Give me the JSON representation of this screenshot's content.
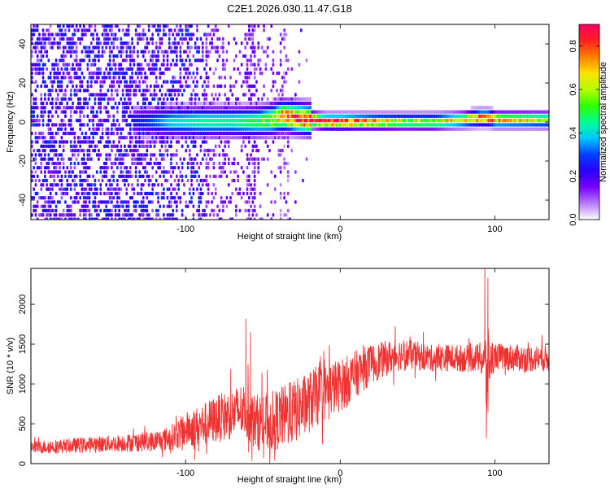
{
  "figure": {
    "title": "C2E1.2026.030.11.47.G18"
  },
  "chart_data": [
    {
      "type": "heatmap",
      "title": "C2E1.2026.030.11.47.G18",
      "xlabel": "Height of straight line (km)",
      "ylabel": "Frequency (Hz)",
      "xlim": [
        -200,
        135
      ],
      "ylim": [
        -50,
        50
      ],
      "x_ticks": [
        -100,
        0,
        100
      ],
      "y_ticks": [
        -40,
        -20,
        0,
        20,
        40
      ],
      "x_tick_labels": [
        "-100",
        "0",
        "100"
      ],
      "y_tick_labels": [
        "-40",
        "-20",
        "0",
        "20",
        "40"
      ],
      "colorbar": {
        "label": "Normalized spectral amplitude",
        "range": [
          0,
          0.9
        ],
        "ticks": [
          0,
          0.2,
          0.4,
          0.6,
          0.8
        ],
        "tick_labels": [
          "0.0",
          "0.2",
          "0.4",
          "0.6",
          "0.8"
        ],
        "colormap": [
          "#ffffff",
          "#b57bff",
          "#7a00ff",
          "#2a00ff",
          "#0040ff",
          "#00c8ff",
          "#00ff90",
          "#30ff00",
          "#b4ff00",
          "#ffe000",
          "#ff8000",
          "#ff2020",
          "#ff0060"
        ]
      },
      "ridge": {
        "description_values": "dominant Doppler near 0 Hz",
        "x": [
          -130,
          -110,
          -90,
          -70,
          -55,
          -45,
          -38,
          -30,
          -20,
          -10,
          0,
          20,
          40,
          60,
          80,
          90,
          95,
          100,
          120,
          135
        ],
        "freq": [
          0,
          0,
          0,
          0,
          0,
          1,
          3,
          2,
          1,
          0,
          0,
          0,
          0,
          0,
          1,
          2,
          2,
          1,
          1,
          1
        ],
        "amplitude": [
          0.25,
          0.4,
          0.45,
          0.45,
          0.5,
          0.6,
          0.75,
          0.8,
          0.85,
          0.85,
          0.85,
          0.7,
          0.6,
          0.6,
          0.65,
          0.85,
          0.85,
          0.7,
          0.65,
          0.6
        ]
      },
      "noise_extent_x": [
        -200,
        -20
      ]
    },
    {
      "type": "line",
      "xlabel": "Height of straight line (km)",
      "ylabel": "SNR (10 * v/v)",
      "xlim": [
        -200,
        135
      ],
      "ylim": [
        0,
        2450
      ],
      "x_ticks": [
        -100,
        0,
        100
      ],
      "y_ticks": [
        0,
        500,
        1000,
        1500,
        2000
      ],
      "x_tick_labels": [
        "-100",
        "0",
        "100"
      ],
      "y_tick_labels": [
        "0",
        "500",
        "1000",
        "1500",
        "2000"
      ],
      "color": "#ee3333",
      "series": [
        {
          "name": "SNR",
          "envelope_x": [
            -200,
            -180,
            -160,
            -140,
            -120,
            -110,
            -100,
            -90,
            -80,
            -70,
            -62,
            -55,
            -45,
            -35,
            -25,
            -15,
            -5,
            0,
            10,
            20,
            30,
            40,
            50,
            60,
            70,
            80,
            90,
            93,
            95,
            97,
            100,
            110,
            120,
            135
          ],
          "envelope_mean": [
            200,
            220,
            240,
            260,
            280,
            320,
            420,
            480,
            560,
            620,
            680,
            520,
            520,
            600,
            700,
            850,
            950,
            980,
            1120,
            1250,
            1320,
            1380,
            1350,
            1320,
            1330,
            1320,
            1330,
            1300,
            1050,
            1300,
            1350,
            1330,
            1320,
            1320
          ],
          "envelope_spread": [
            80,
            90,
            100,
            110,
            130,
            160,
            220,
            260,
            300,
            320,
            350,
            350,
            380,
            400,
            400,
            380,
            350,
            330,
            300,
            250,
            220,
            200,
            180,
            170,
            170,
            170,
            180,
            300,
            700,
            300,
            170,
            170,
            170,
            170
          ],
          "spikes": [
            {
              "x": -61,
              "value": 1820
            },
            {
              "x": -58,
              "value": 1650
            },
            {
              "x": 93.5,
              "value": 2450
            },
            {
              "x": 95.5,
              "value": 2330
            },
            {
              "x": 94.5,
              "value": 320
            }
          ]
        }
      ]
    }
  ]
}
